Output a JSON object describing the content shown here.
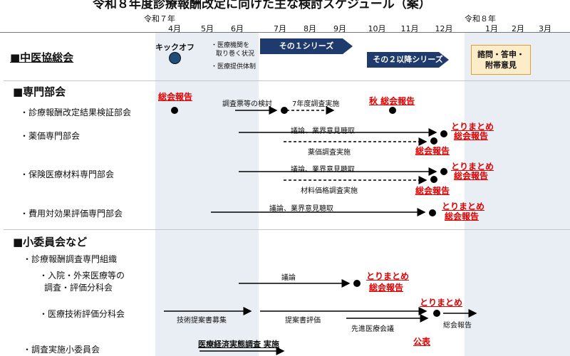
{
  "title": "令和８年度診療報酬改定に向けた主な検討スケジュール（案）",
  "era": {
    "r7": "令和７年",
    "r8": "令和８年"
  },
  "months": [
    "4月",
    "5月",
    "6月",
    "7月",
    "8月",
    "9月",
    "10月",
    "11月",
    "12月",
    "1月",
    "2月",
    "3月"
  ],
  "chuikyo": {
    "label": "■中医協総会",
    "kickoff": "キックオフ",
    "notes": [
      "・医療機関を",
      "取り巻く状況",
      "・医療提供体制"
    ],
    "series1": "その１シリーズ",
    "series2": "その２以降シリーズ",
    "final_box": [
      "諮問・答申・",
      "附帯意見"
    ]
  },
  "senmon": {
    "label": "■専門部会",
    "items": [
      {
        "label": "・診療報酬改定結果検証部会"
      },
      {
        "label": "・薬価専門部会"
      },
      {
        "label": "・保険医療材料専門部会"
      },
      {
        "label": "・費用対効果評価専門部会"
      }
    ],
    "kensho": {
      "report1": "総会報告",
      "survey_review": "調査票等の検討",
      "survey_run": "7年度調査実施",
      "autumn_report": "秋 総会報告"
    },
    "yakka": {
      "discussion": "議論、業界意見聴取",
      "survey": "薬価調査実施",
      "summary": "とりまとめ",
      "report": "総会報告",
      "report2": "総会報告"
    },
    "zairyo": {
      "discussion": "議論、業界意見聴取",
      "survey": "材料価格調査実施",
      "summary": "とりまとめ",
      "report": "総会報告",
      "report2": "総会報告"
    },
    "hiyo": {
      "discussion": "議論、業界意見聴取",
      "summary": "とりまとめ",
      "report": "総会報告"
    }
  },
  "shoiinkai": {
    "label": "■小委員会など",
    "org": "・診療報酬調査専門組織",
    "nyuin": {
      "label1": "・入院・外来医療等の",
      "label2": "調査・評価分科会",
      "discussion": "議論",
      "summary": "とりまとめ",
      "report": "総会報告"
    },
    "gijutsu": {
      "label": "・医療技術評価分科会",
      "recruit": "技術提案書募集",
      "evaluate": "提案書評価",
      "senshin": "先進医療会議",
      "summary": "とりまとめ",
      "report": "総会報告"
    },
    "chosa": {
      "label": "・調査実施小委員会",
      "survey": "医療経済実態調査 実施",
      "publish": "公表"
    }
  }
}
